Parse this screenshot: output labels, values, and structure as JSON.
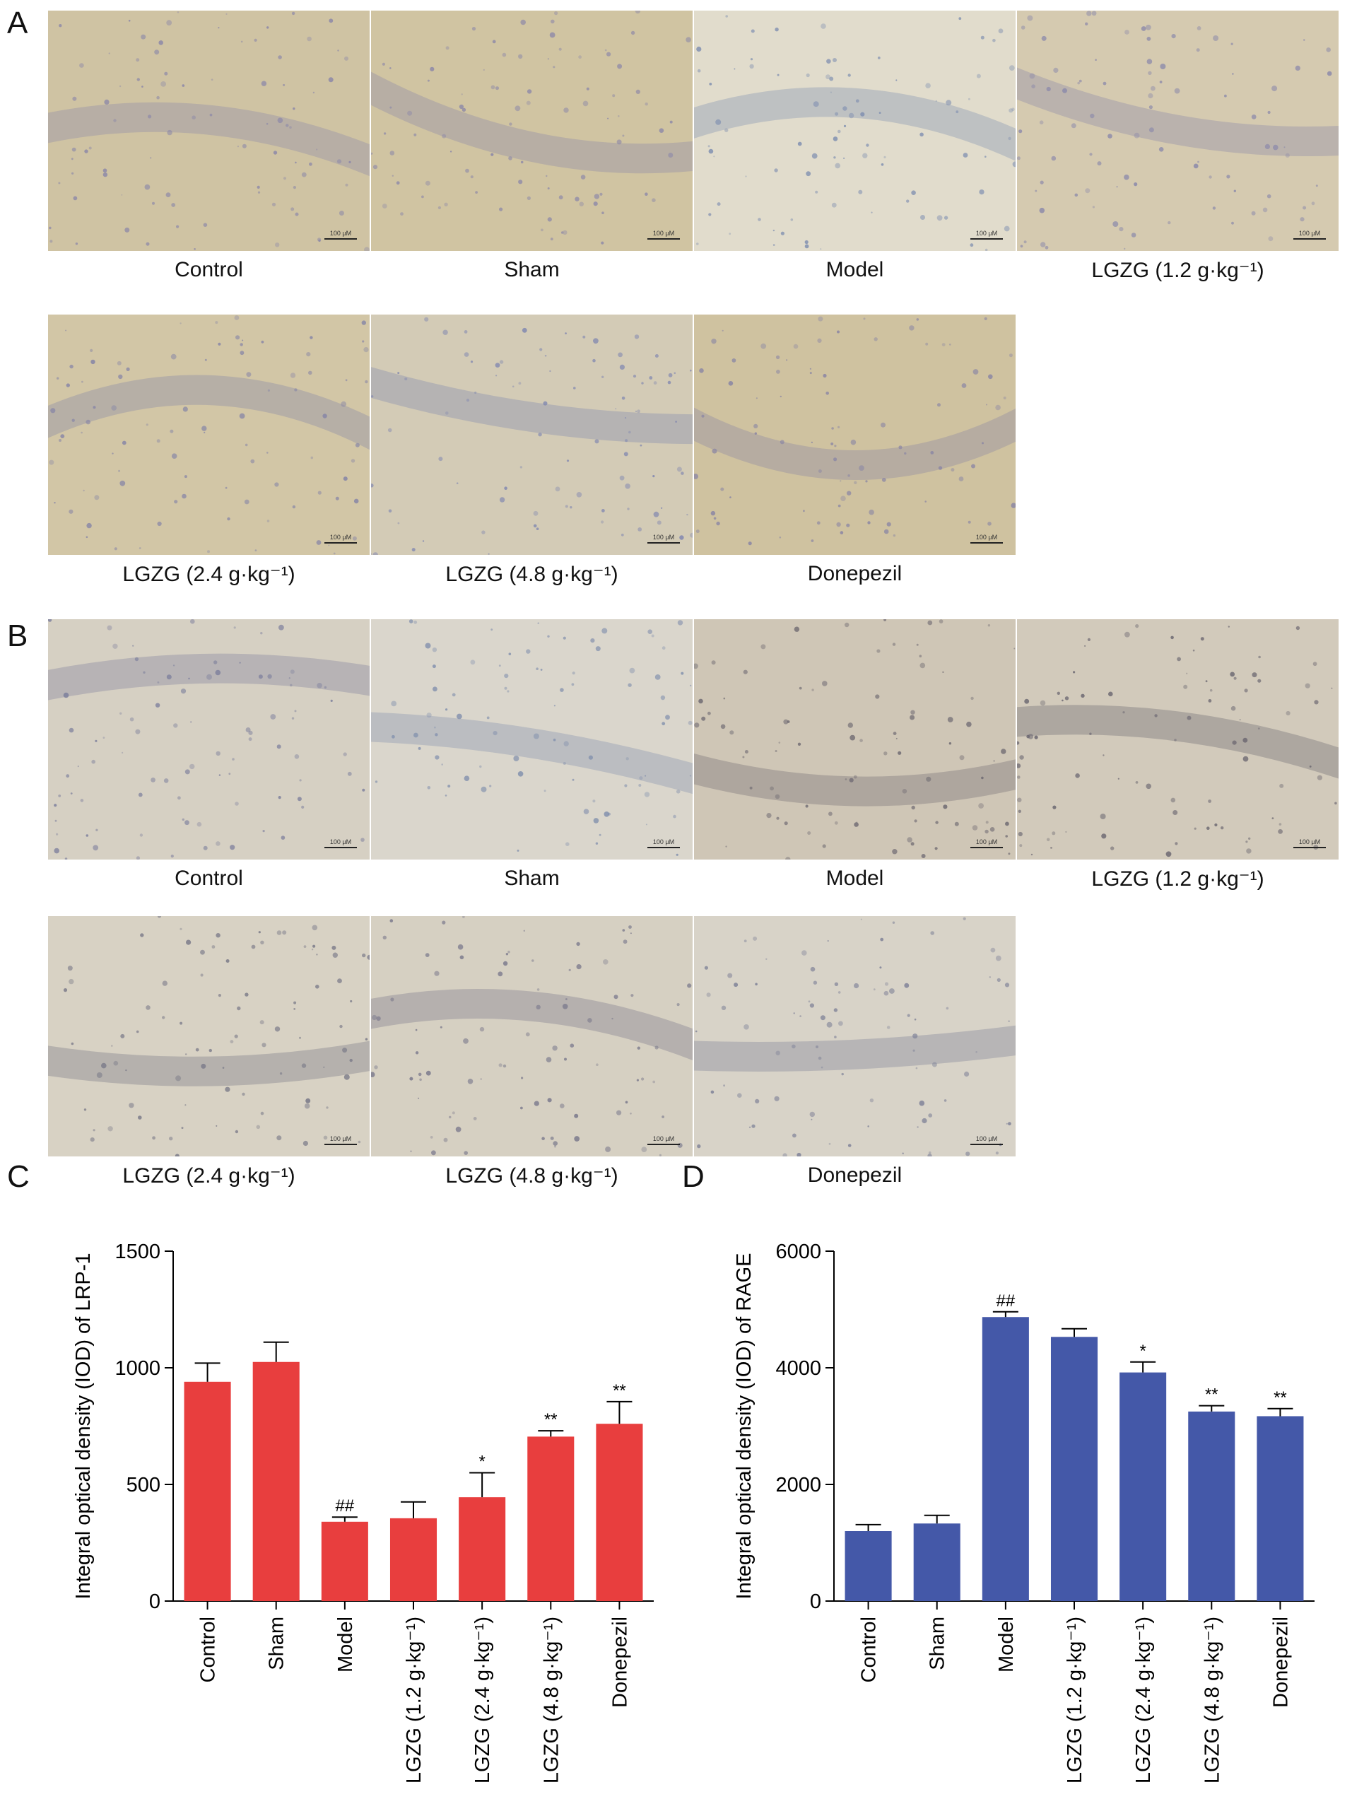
{
  "panels": {
    "A": {
      "letter": "A",
      "scale_text": "100 µM",
      "images": [
        {
          "label": "Control",
          "tone": "#cfc3a3",
          "cells": "#8a86a8"
        },
        {
          "label": "Sham",
          "tone": "#d0c4a2",
          "cells": "#8a86a8"
        },
        {
          "label": "Model",
          "tone": "#e1dccc",
          "cells": "#7f8fb0"
        },
        {
          "label": "LGZG (1.2 g·kg⁻¹)",
          "tone": "#d5cab0",
          "cells": "#8a88aa"
        },
        {
          "label": "LGZG (2.4 g·kg⁻¹)",
          "tone": "#d2c6a6",
          "cells": "#8584a6"
        },
        {
          "label": "LGZG (4.8 g·kg⁻¹)",
          "tone": "#d3cbb6",
          "cells": "#7f86b0"
        },
        {
          "label": "Donepezil",
          "tone": "#cfc2a0",
          "cells": "#8783a4"
        }
      ]
    },
    "B": {
      "letter": "B",
      "scale_text": "100 µM",
      "images": [
        {
          "label": "Control",
          "tone": "#d6d0c3",
          "cells": "#7d7f9c"
        },
        {
          "label": "Sham",
          "tone": "#dad6cc",
          "cells": "#8290ad"
        },
        {
          "label": "Model",
          "tone": "#cfc6b6",
          "cells": "#6f6a72"
        },
        {
          "label": "LGZG (1.2 g·kg⁻¹)",
          "tone": "#d2cabb",
          "cells": "#6a6670"
        },
        {
          "label": "LGZG (2.4 g·kg⁻¹)",
          "tone": "#d8d2c4",
          "cells": "#757585"
        },
        {
          "label": "LGZG (4.8 g·kg⁻¹)",
          "tone": "#d6d0c2",
          "cells": "#77768a"
        },
        {
          "label": "Donepezil",
          "tone": "#d8d3c8",
          "cells": "#7c7f96"
        }
      ]
    }
  },
  "chart_data": [
    {
      "letter": "C",
      "type": "bar",
      "ylabel": "Integral optical density (IOD) of LRP-1",
      "categories": [
        "Control",
        "Sham",
        "Model",
        "LGZG (1.2 g·kg⁻¹)",
        "LGZG (2.4 g·kg⁻¹)",
        "LGZG (4.8 g·kg⁻¹)",
        "Donepezil"
      ],
      "values": [
        940,
        1025,
        340,
        355,
        445,
        705,
        760
      ],
      "errors": [
        80,
        85,
        20,
        70,
        105,
        25,
        95
      ],
      "annotations": [
        "",
        "",
        "##",
        "",
        "*",
        "**",
        "**"
      ],
      "ylim": [
        0,
        1500
      ],
      "yticks": [
        0,
        500,
        1000,
        1500
      ],
      "color": "#e83e3e"
    },
    {
      "letter": "D",
      "type": "bar",
      "ylabel": "Integral optical density (IOD) of RAGE",
      "categories": [
        "Control",
        "Sham",
        "Model",
        "LGZG (1.2 g·kg⁻¹)",
        "LGZG (2.4 g·kg⁻¹)",
        "LGZG (4.8 g·kg⁻¹)",
        "Donepezil"
      ],
      "values": [
        1200,
        1330,
        4870,
        4530,
        3920,
        3250,
        3170
      ],
      "errors": [
        110,
        140,
        90,
        140,
        180,
        100,
        130
      ],
      "annotations": [
        "",
        "",
        "##",
        "",
        "*",
        "**",
        "**"
      ],
      "ylim": [
        0,
        6000
      ],
      "yticks": [
        0,
        2000,
        4000,
        6000
      ],
      "color": "#4458a8"
    }
  ]
}
